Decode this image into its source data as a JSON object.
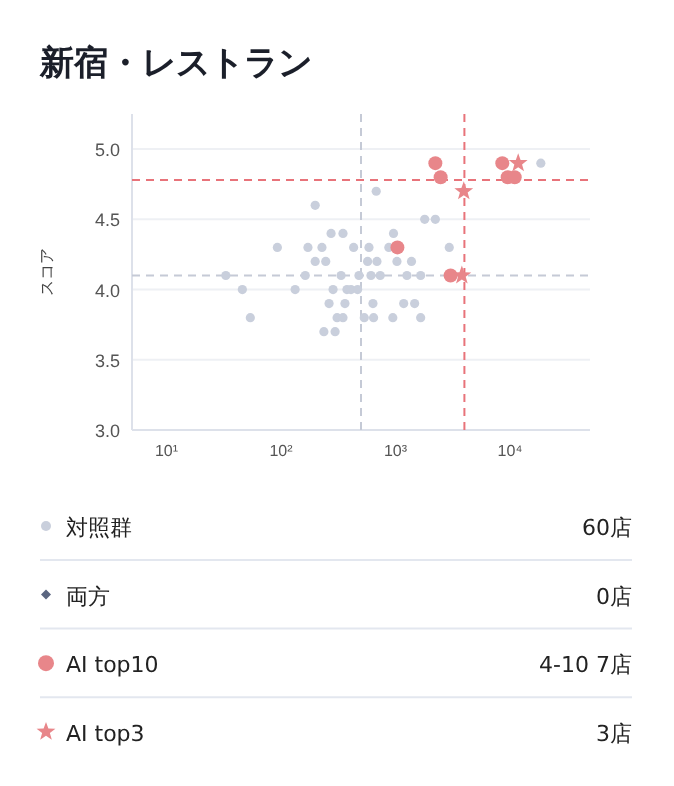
{
  "chart_data": {
    "type": "scatter",
    "title": "新宿・レストラン",
    "ylabel": "スコア",
    "log": "x",
    "xlim": [
      5,
      50000
    ],
    "ylim": [
      3,
      5.25
    ],
    "xticks": [
      {
        "value": 10,
        "label": "10¹"
      },
      {
        "value": 100,
        "label": "10²"
      },
      {
        "value": 1000,
        "label": "10³"
      },
      {
        "value": 10000,
        "label": "10⁴"
      }
    ],
    "yticks": [
      {
        "value": 3,
        "label": "3.0"
      },
      {
        "value": 3.5,
        "label": "3.5"
      },
      {
        "value": 4,
        "label": "4.0"
      },
      {
        "value": 4.5,
        "label": "4.5"
      },
      {
        "value": 5,
        "label": "5.0"
      }
    ],
    "grid": "y",
    "legend": "bottom",
    "ref_lines": [
      {
        "axis": "x",
        "value": 500,
        "color": "#c5cad6",
        "line_style": "dashed"
      },
      {
        "axis": "y",
        "value": 4.1,
        "color": "#c5cad6",
        "line_style": "dashed"
      },
      {
        "axis": "x",
        "value": 4000,
        "color": "#e8737a",
        "line_style": "dashed"
      },
      {
        "axis": "y",
        "value": 4.78,
        "color": "#e8737a",
        "line_style": "dashed"
      }
    ],
    "series": [
      {
        "name": "対照群",
        "color": "#c9cfdc",
        "marker": "circle",
        "x": [
          33,
          46,
          54,
          93,
          133,
          163,
          172,
          199,
          199,
          228,
          237,
          246,
          263,
          274,
          285,
          297,
          309,
          335,
          348,
          348,
          362,
          377,
          409,
          431,
          467,
          480,
          534,
          571,
          587,
          611,
          636,
          644,
          679,
          689,
          736,
          875,
          948,
          961,
          1030,
          1180,
          1260,
          1380,
          1470,
          1660,
          1660,
          1800,
          2230,
          2950,
          18600
        ],
        "values": [
          4.1,
          4.0,
          3.8,
          4.3,
          4.0,
          4.1,
          4.3,
          4.6,
          4.2,
          4.3,
          3.7,
          4.2,
          3.9,
          4.4,
          4.0,
          3.7,
          3.8,
          4.1,
          4.4,
          3.8,
          3.9,
          4.0,
          4.0,
          4.3,
          4.0,
          4.1,
          3.8,
          4.2,
          4.3,
          4.1,
          3.9,
          3.8,
          4.7,
          4.2,
          4.1,
          4.3,
          3.8,
          4.4,
          4.2,
          3.9,
          4.1,
          4.2,
          3.9,
          4.1,
          3.8,
          4.5,
          4.5,
          4.3,
          4.9
        ]
      },
      {
        "name": "両方",
        "color": "#5b6680",
        "marker": "diamond"
      },
      {
        "name": "AI top10",
        "color": "#e8868a",
        "marker": "circle",
        "x": [
          2230,
          2480,
          1040,
          3030,
          8570,
          9550,
          11000
        ],
        "values": [
          4.9,
          4.8,
          4.3,
          4.1,
          4.9,
          4.8,
          4.8
        ]
      },
      {
        "name": "AI top3",
        "color": "#e8868a",
        "marker": "star",
        "x": [
          3950,
          3800,
          11800
        ],
        "values": [
          4.7,
          4.1,
          4.9
        ]
      }
    ],
    "annotations": [
      "60店",
      "0店",
      "4-10 7店",
      "3店"
    ]
  }
}
